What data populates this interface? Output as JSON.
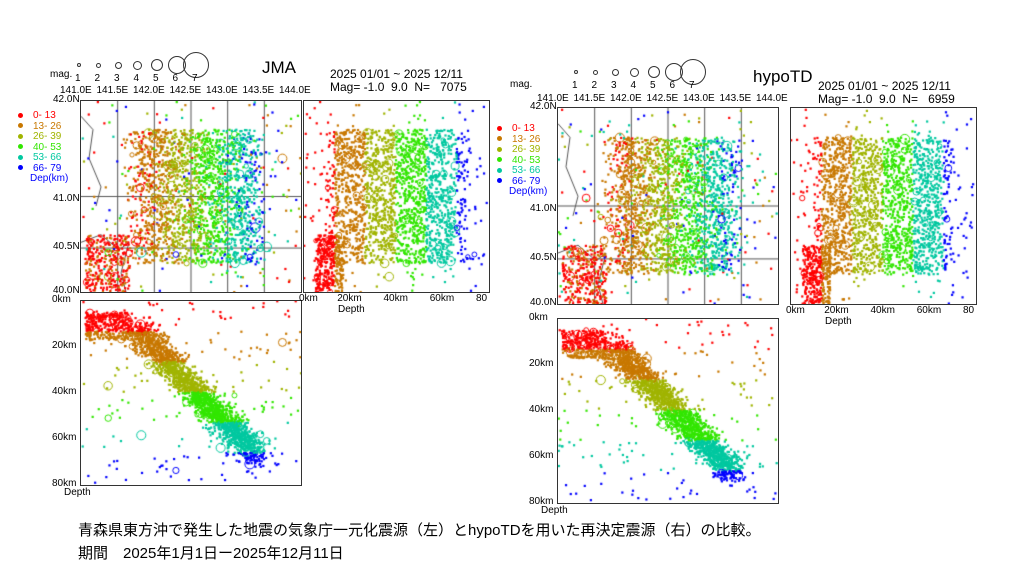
{
  "caption": {
    "line1": "青森県東方沖で発生した地震の気象庁一元化震源（左）とhypoTDを用いた再決定震源（右）の比較。",
    "line2": "期間　2025年1月1日ー2025年12月11日"
  },
  "mag_legend": {
    "label": "mag.",
    "values": [
      "1",
      "2",
      "3",
      "4",
      "5",
      "6",
      "7"
    ]
  },
  "depth_legend": {
    "items": [
      {
        "label": "0- 13",
        "color": "#ff0000"
      },
      {
        "label": "13- 26",
        "color": "#c87800"
      },
      {
        "label": "26- 39",
        "color": "#a0b400"
      },
      {
        "label": "40- 53",
        "color": "#32e600"
      },
      {
        "label": "53- 66",
        "color": "#00c8a0"
      },
      {
        "label": "66- 79",
        "color": "#0000ff"
      }
    ],
    "unit": "Dep(km)"
  },
  "lon_ticks": [
    "141.0E",
    "141.5E",
    "142.0E",
    "142.5E",
    "143.0E",
    "143.5E",
    "144.0E"
  ],
  "lat_ticks": [
    "42.0N",
    "41.0N",
    "40.5N",
    "40.0N"
  ],
  "depth_ticks_h": [
    "0km",
    "20km",
    "40km",
    "60km",
    "80"
  ],
  "depth_ticks_v": [
    "0km",
    "20km",
    "40km",
    "60km",
    "80km"
  ],
  "depth_label": "Depth",
  "panels": [
    {
      "name": "JMA",
      "period": "2025 01/01 ~ 2025 12/11",
      "mag_line": "Mag= -1.0  9.0  N=",
      "count": "7075"
    },
    {
      "name": "hypoTD",
      "period": "2025 01/01 ~ 2025 12/11",
      "mag_line": "Mag= -1.0  9.0  N=",
      "count": "6959"
    }
  ]
}
